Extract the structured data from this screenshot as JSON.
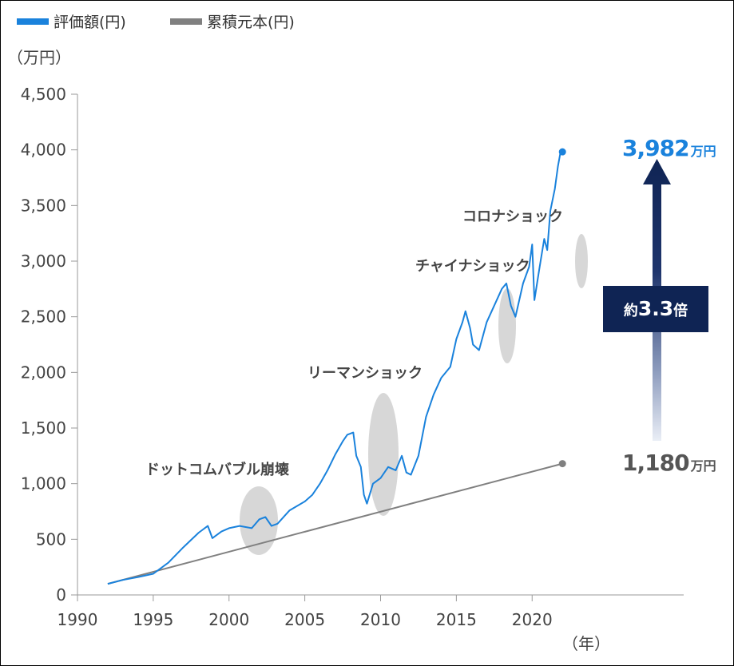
{
  "chart_data": {
    "type": "line",
    "unit_label": "（万円）",
    "x_unit_label": "（年）",
    "ylim": [
      0,
      4500
    ],
    "xlim": [
      1990,
      2030
    ],
    "y_ticks": [
      "0",
      "500",
      "1,000",
      "1,500",
      "2,000",
      "2,500",
      "3,000",
      "3,500",
      "4,000",
      "4,500"
    ],
    "x_ticks": [
      "1990",
      "1995",
      "2000",
      "2005",
      "2010",
      "2015",
      "2020"
    ],
    "legend": [
      "評価額(円)",
      "累積元本(円)"
    ],
    "series": [
      {
        "name": "評価額(円)",
        "color": "#1a82dc",
        "points": [
          [
            1992.0,
            100
          ],
          [
            1993.0,
            135
          ],
          [
            1994.0,
            160
          ],
          [
            1995.0,
            190
          ],
          [
            1996.0,
            290
          ],
          [
            1997.0,
            430
          ],
          [
            1998.0,
            560
          ],
          [
            1998.6,
            620
          ],
          [
            1998.9,
            510
          ],
          [
            1999.5,
            570
          ],
          [
            2000.0,
            600
          ],
          [
            2000.7,
            620
          ],
          [
            2001.5,
            600
          ],
          [
            2002.0,
            680
          ],
          [
            2002.4,
            700
          ],
          [
            2002.8,
            620
          ],
          [
            2003.2,
            640
          ],
          [
            2004.0,
            760
          ],
          [
            2005.0,
            840
          ],
          [
            2005.5,
            900
          ],
          [
            2006.0,
            1000
          ],
          [
            2006.5,
            1120
          ],
          [
            2007.0,
            1260
          ],
          [
            2007.5,
            1380
          ],
          [
            2007.8,
            1440
          ],
          [
            2008.2,
            1460
          ],
          [
            2008.4,
            1250
          ],
          [
            2008.7,
            1150
          ],
          [
            2008.9,
            900
          ],
          [
            2009.1,
            820
          ],
          [
            2009.5,
            1000
          ],
          [
            2010.0,
            1050
          ],
          [
            2010.5,
            1150
          ],
          [
            2011.0,
            1120
          ],
          [
            2011.4,
            1250
          ],
          [
            2011.7,
            1100
          ],
          [
            2012.0,
            1080
          ],
          [
            2012.5,
            1250
          ],
          [
            2013.0,
            1600
          ],
          [
            2013.5,
            1800
          ],
          [
            2014.0,
            1950
          ],
          [
            2014.6,
            2050
          ],
          [
            2015.0,
            2300
          ],
          [
            2015.4,
            2450
          ],
          [
            2015.6,
            2550
          ],
          [
            2015.9,
            2400
          ],
          [
            2016.1,
            2250
          ],
          [
            2016.5,
            2200
          ],
          [
            2017.0,
            2450
          ],
          [
            2017.5,
            2600
          ],
          [
            2018.0,
            2750
          ],
          [
            2018.3,
            2800
          ],
          [
            2018.6,
            2600
          ],
          [
            2018.9,
            2500
          ],
          [
            2019.4,
            2800
          ],
          [
            2019.8,
            2950
          ],
          [
            2020.0,
            3150
          ],
          [
            2020.15,
            2650
          ],
          [
            2020.5,
            2950
          ],
          [
            2020.8,
            3200
          ],
          [
            2021.0,
            3100
          ],
          [
            2021.2,
            3450
          ],
          [
            2021.5,
            3650
          ],
          [
            2021.7,
            3850
          ],
          [
            2021.9,
            4000
          ],
          [
            2022.0,
            3982
          ]
        ]
      },
      {
        "name": "累積元本(円)",
        "color": "#808080",
        "points": [
          [
            1992.0,
            100
          ],
          [
            2022.0,
            1180
          ]
        ]
      }
    ],
    "annotations": [
      {
        "text": "ドットコムバブル崩壊",
        "x": 2000.8,
        "y": 580
      },
      {
        "text": "リーマンショック",
        "x": 2008.3,
        "y": 1175
      },
      {
        "text": "チャイナショック",
        "x": 2015.7,
        "y": 2420
      },
      {
        "text": "コロナショック",
        "x": 2020.1,
        "y": 2860
      }
    ],
    "end_values": {
      "valuation": {
        "number": "3,982",
        "unit": "万円"
      },
      "principal": {
        "number": "1,180",
        "unit": "万円"
      }
    },
    "ratio_label": {
      "prefix": "約",
      "value": "3.3",
      "suffix": "倍"
    }
  }
}
